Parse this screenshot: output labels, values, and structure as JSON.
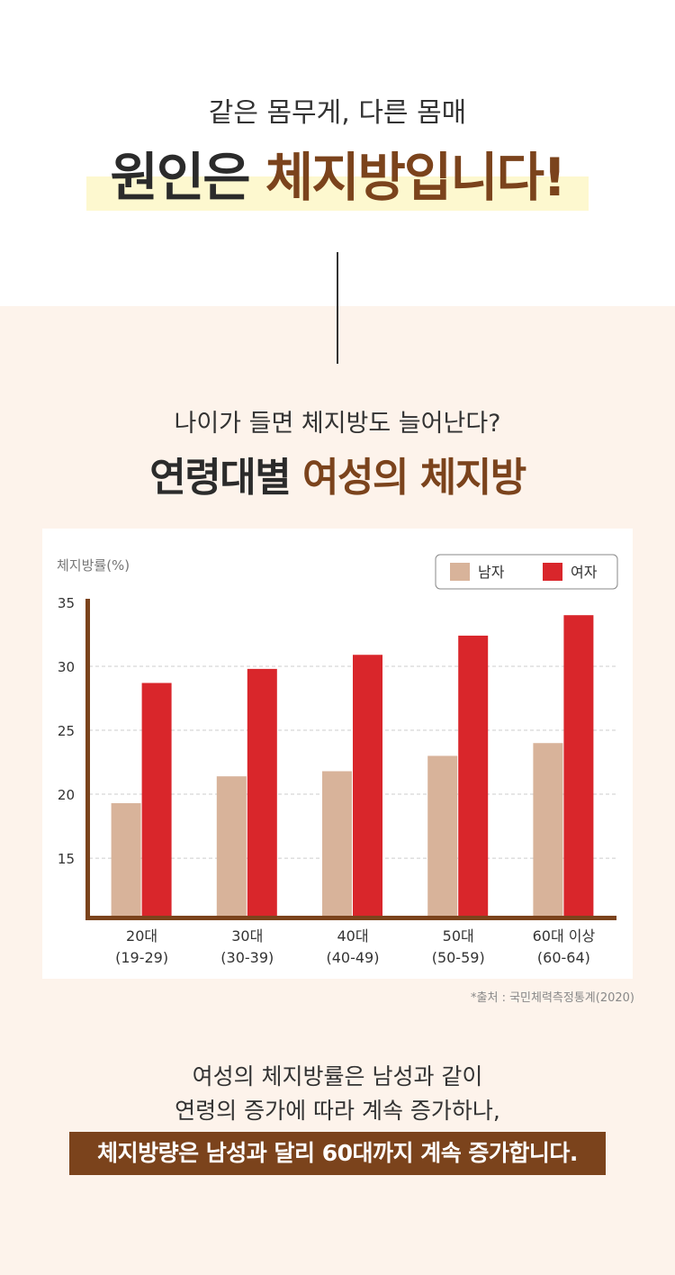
{
  "hero": {
    "subtitle": "같은 몸무게, 다른 몸매",
    "headline_dark": "원인은",
    "headline_brown": "체지방입니다!"
  },
  "section": {
    "subtitle": "나이가 들면 체지방도 늘어난다?",
    "headline_dark": "연령대별",
    "headline_brown": "여성의 체지방"
  },
  "chart_data": {
    "type": "bar",
    "ylabel": "체지방률(%)",
    "y_ticks": [
      15,
      20,
      25,
      30,
      35
    ],
    "ylim": [
      10.5,
      35
    ],
    "grid": true,
    "legend_position": "top-right",
    "categories": [
      {
        "label": "20대",
        "range": "(19-29)"
      },
      {
        "label": "30대",
        "range": "(30-39)"
      },
      {
        "label": "40대",
        "range": "(40-49)"
      },
      {
        "label": "50대",
        "range": "(50-59)"
      },
      {
        "label": "60대 이상",
        "range": "(60-64)"
      }
    ],
    "series": [
      {
        "name": "남자",
        "color": "#d8b39a",
        "values": [
          19.3,
          21.4,
          21.8,
          23.0,
          24.0
        ]
      },
      {
        "name": "여자",
        "color": "#d9262b",
        "values": [
          28.7,
          29.8,
          30.9,
          32.4,
          34.0
        ]
      }
    ],
    "axis_color": "#7b431c"
  },
  "source": "*출처 : 국민체력측정통계(2020)",
  "body": {
    "line1": "여성의 체지방률은 남성과 같이",
    "line2": "연령의 증가에 따라 계속 증가하나,",
    "emphasis": "체지방량은 남성과 달리 60대까지 계속 증가합니다."
  }
}
